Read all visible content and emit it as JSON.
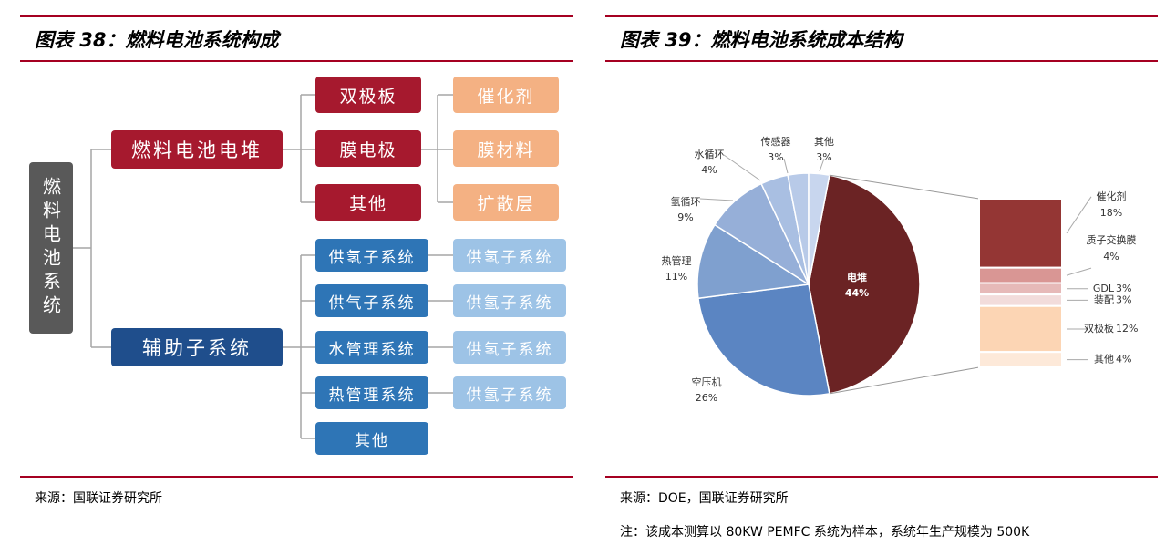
{
  "figure38": {
    "title": "图表 38：燃料电池系统构成",
    "root": "燃料电池系统",
    "stack": {
      "label": "燃料电池电堆",
      "children": [
        "双极板",
        "膜电极",
        "其他"
      ],
      "materials": [
        "催化剂",
        "膜材料",
        "扩散层"
      ]
    },
    "aux": {
      "label": "辅助子系统",
      "children": [
        "供氢子系统",
        "供气子系统",
        "水管理系统",
        "热管理系统",
        "其他"
      ],
      "sub": [
        "供氢子系统",
        "供氢子系统",
        "供氢子系统",
        "供氢子系统"
      ]
    },
    "source": "来源：国联证券研究所"
  },
  "chart_data": {
    "type": "pie-of-bar",
    "title": "图表 39：燃料电池系统成本结构",
    "categories": [
      "电堆",
      "空压机",
      "热管理",
      "氢循环",
      "水循环",
      "传感器",
      "其他"
    ],
    "values": [
      44,
      26,
      11,
      9,
      4,
      3,
      3
    ],
    "value_labels": [
      "44%",
      "26%",
      "11%",
      "9%",
      "4%",
      "3%",
      "3%"
    ],
    "colors": [
      "#6b2324",
      "#5b85c2",
      "#7fa0cf",
      "#96afd8",
      "#a9bfe2",
      "#b8cae8",
      "#c8d6ee"
    ],
    "bar": {
      "categories": [
        "催化剂",
        "质子交换膜",
        "GDL",
        "装配",
        "双极板",
        "其他"
      ],
      "values": [
        18,
        4,
        3,
        3,
        12,
        4
      ],
      "value_labels": [
        "18%",
        "4%",
        "3%",
        "3%",
        "12%",
        "4%"
      ],
      "colors": [
        "#943634",
        "#d99694",
        "#e6b9b8",
        "#f2dcdb",
        "#fcd5b4",
        "#fde9d9"
      ]
    },
    "source": "来源：DOE，国联证券研究所",
    "note": "注：该成本测算以 80KW PEMFC 系统为样本，系统年生产规模为 500K"
  }
}
